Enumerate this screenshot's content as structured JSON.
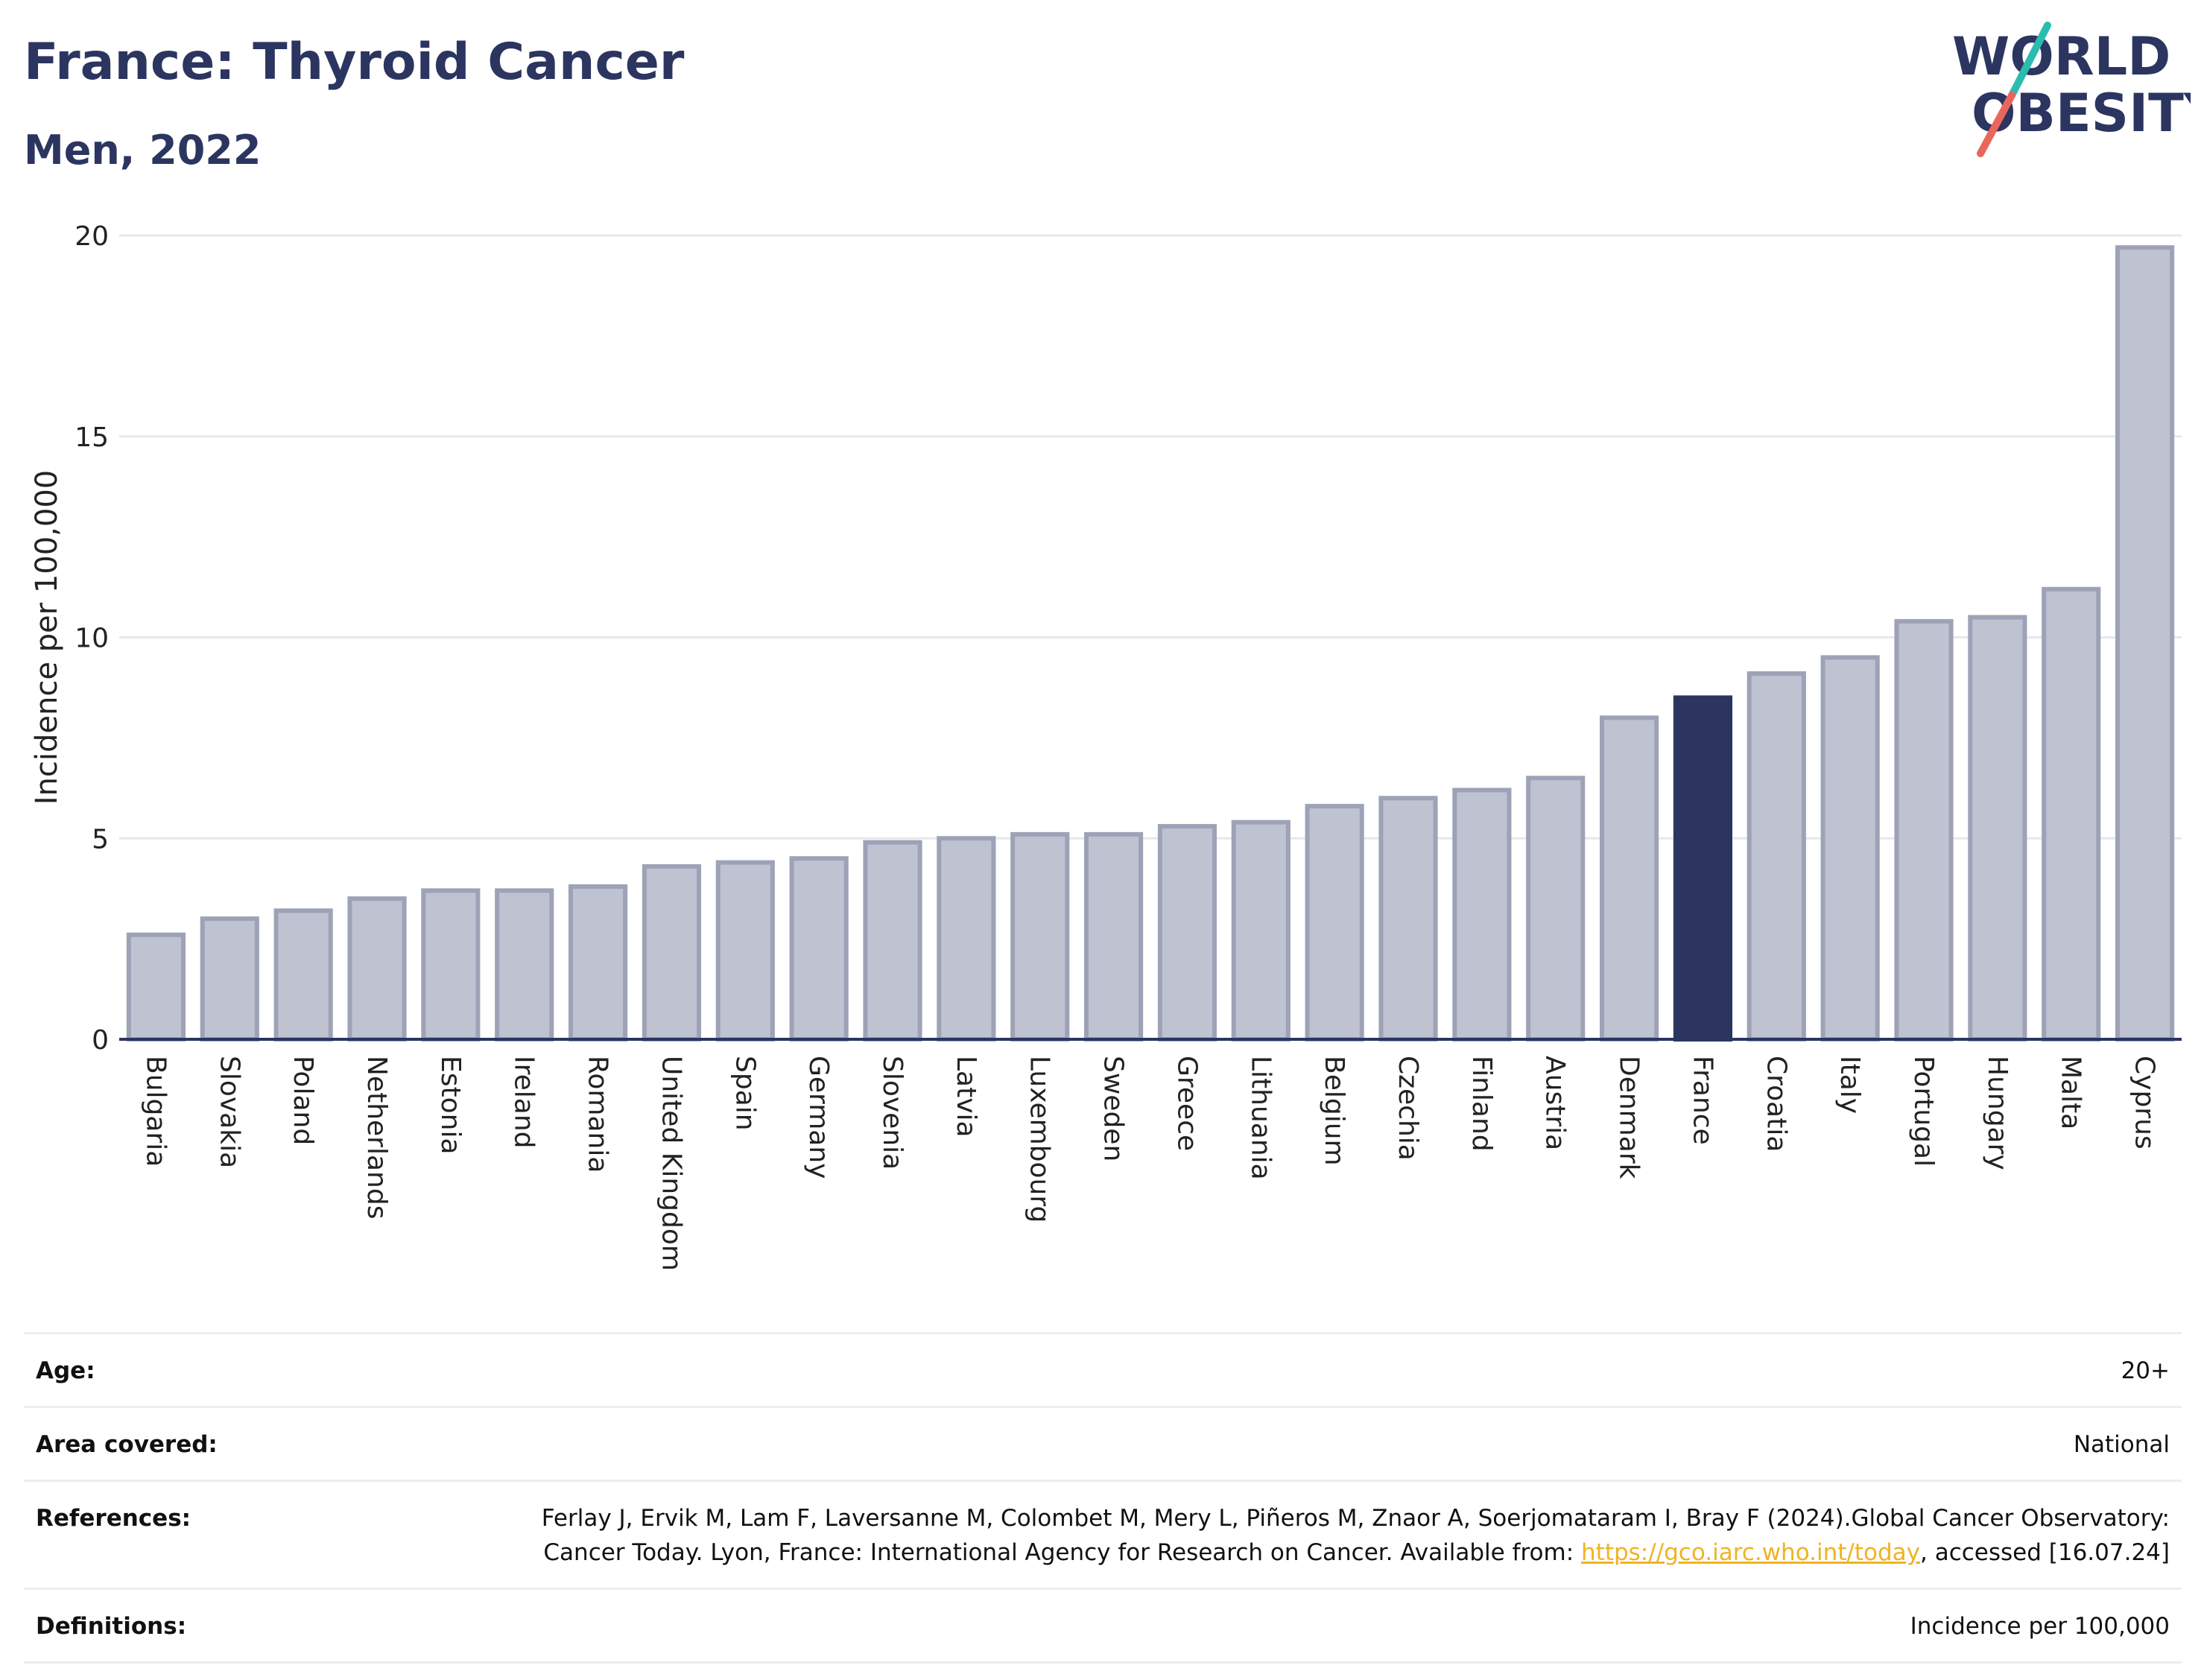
{
  "header": {
    "title": "France: Thyroid Cancer",
    "subtitle": "Men, 2022"
  },
  "logo": {
    "line1": "WORLD",
    "line2": "OBESITY",
    "slash_color_top": "#2bbcb0",
    "slash_color_bottom": "#e8665c",
    "text_color": "#2b3560"
  },
  "chart_data": {
    "type": "bar",
    "title": "France: Thyroid Cancer",
    "subtitle": "Men, 2022",
    "xlabel": "",
    "ylabel": "Incidence per 100,000",
    "ylim": [
      0,
      20
    ],
    "yticks": [
      0,
      5,
      10,
      15,
      20
    ],
    "grid": true,
    "categories": [
      "Bulgaria",
      "Slovakia",
      "Poland",
      "Netherlands",
      "Estonia",
      "Ireland",
      "Romania",
      "United Kingdom",
      "Spain",
      "Germany",
      "Slovenia",
      "Latvia",
      "Luxembourg",
      "Sweden",
      "Greece",
      "Lithuania",
      "Belgium",
      "Czechia",
      "Finland",
      "Austria",
      "Denmark",
      "France",
      "Croatia",
      "Italy",
      "Portugal",
      "Hungary",
      "Malta",
      "Cyprus"
    ],
    "values": [
      2.6,
      3.0,
      3.2,
      3.5,
      3.7,
      3.7,
      3.8,
      4.3,
      4.4,
      4.5,
      4.9,
      5.0,
      5.1,
      5.1,
      5.3,
      5.4,
      5.8,
      6.0,
      6.2,
      6.5,
      8.0,
      8.5,
      9.1,
      9.5,
      10.4,
      10.5,
      11.2,
      19.7
    ],
    "highlight": "France",
    "colors": {
      "bar": "#bfc2d0",
      "bar_border": "#9da2b7",
      "highlight": "#2b3560",
      "grid": "#e6e8ee",
      "axis": "#2b3560"
    }
  },
  "info": {
    "age_label": "Age:",
    "age_value": "20+",
    "area_label": "Area covered:",
    "area_value": "National",
    "references_label": "References:",
    "references_text": "Ferlay J, Ervik M, Lam F, Laversanne M, Colombet M, Mery L, Piñeros M, Znaor A, Soerjomataram I, Bray F (2024).Global Cancer Observatory: Cancer Today. Lyon, France: International Agency for Research on Cancer. Available from:",
    "references_link": "https://gco.iarc.who.int/today",
    "references_suffix": ", accessed [16.07.24]",
    "definitions_label": "Definitions:",
    "definitions_value": "Incidence per 100,000"
  }
}
